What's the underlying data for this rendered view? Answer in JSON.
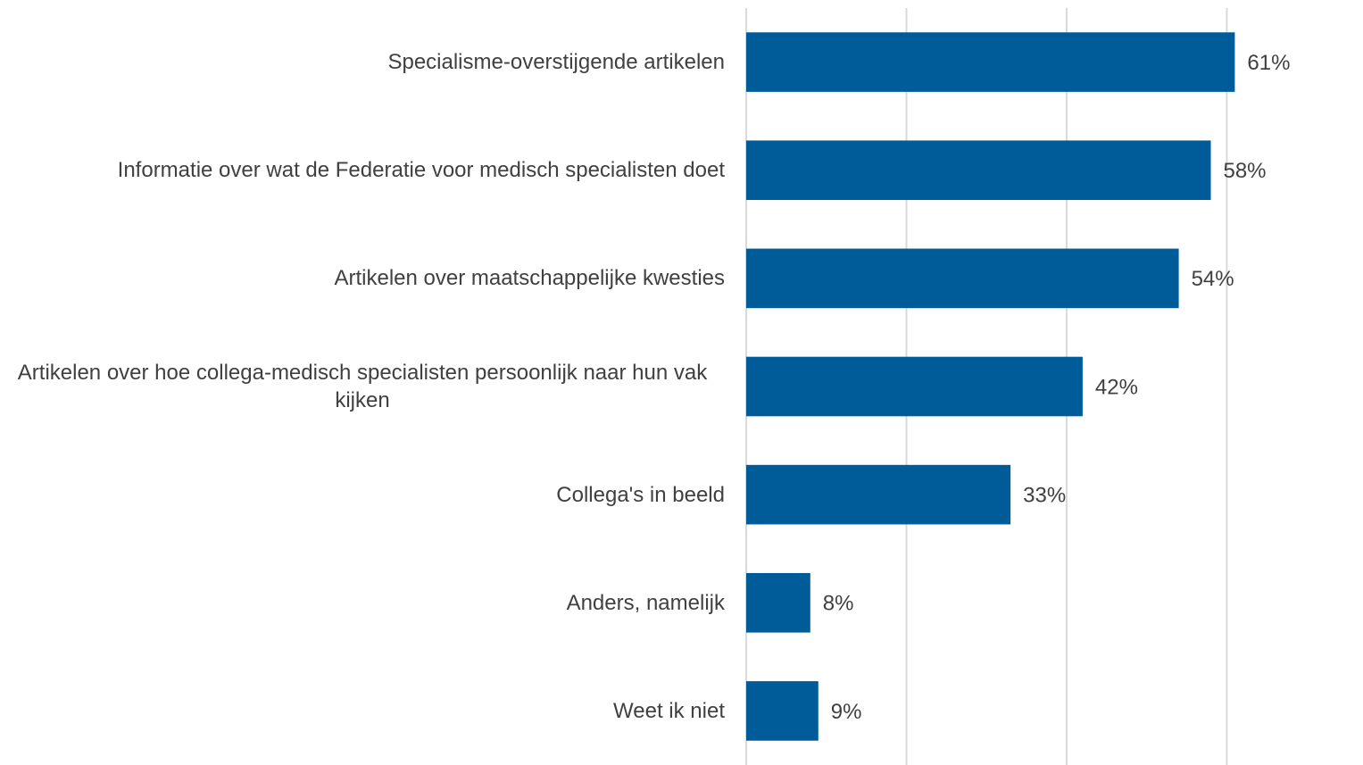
{
  "chart_data": {
    "type": "barh",
    "categories": [
      "Specialisme-overstijgende artikelen",
      "Informatie over wat de Federatie voor medisch specialisten doet",
      "Artikelen over maatschappelijke kwesties",
      "Artikelen over hoe collega-medisch specialisten persoonlijk naar hun vak kijken",
      "Collega's in beeld",
      "Anders, namelijk",
      "Weet ik niet"
    ],
    "values": [
      61,
      58,
      54,
      42,
      33,
      8,
      9
    ],
    "value_labels": [
      "61%",
      "58%",
      "54%",
      "42%",
      "33%",
      "8%",
      "9%"
    ],
    "color": "#005b99",
    "xlim": [
      0,
      76
    ],
    "xticks": [
      0,
      20,
      40,
      60
    ],
    "grid": true
  }
}
